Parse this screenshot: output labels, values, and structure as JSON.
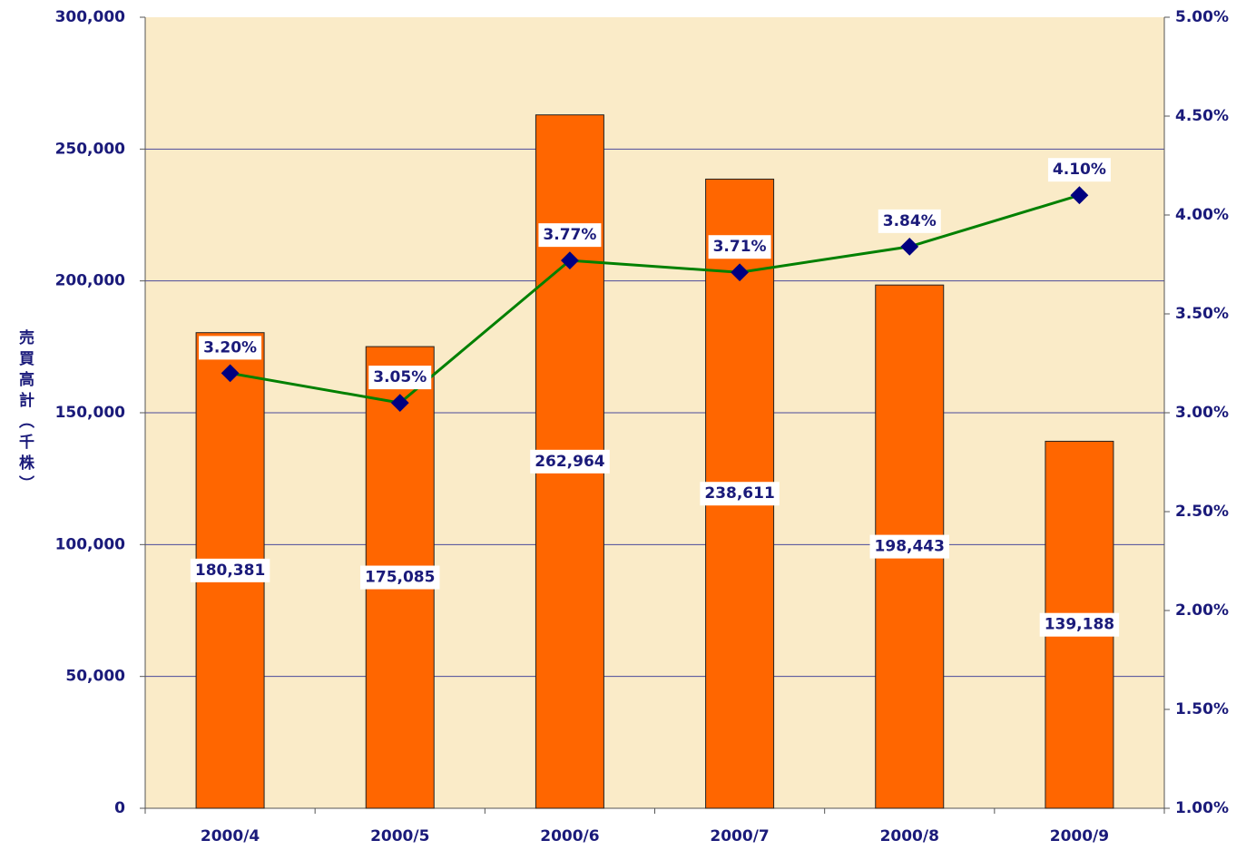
{
  "chart_data": {
    "type": "bar",
    "ylabel": "売買高計（千株）",
    "categories": [
      "2000/4",
      "2000/5",
      "2000/6",
      "2000/7",
      "2000/8",
      "2000/9"
    ],
    "series": [
      {
        "color": "#ff6600",
        "values": [
          180381,
          175085,
          262964,
          238611,
          198443,
          139188
        ],
        "value_labels": [
          "180,381",
          "175,085",
          "262,964",
          "238,611",
          "198,443",
          "139,188"
        ]
      },
      {
        "type": "line",
        "axis": "y2",
        "color": "#008000",
        "marker_color": "#000080",
        "values": [
          3.2,
          3.05,
          3.77,
          3.71,
          3.84,
          4.1
        ],
        "value_labels": [
          "3.20%",
          "3.05%",
          "3.77%",
          "3.71%",
          "3.84%",
          "4.10%"
        ]
      }
    ],
    "ylim": [
      0,
      300000
    ],
    "yticks": [
      0,
      {
        "value": 50000,
        "label": "50,000"
      },
      {
        "value": 100000,
        "label": "100,000"
      },
      {
        "value": 150000,
        "label": "150,000"
      },
      {
        "value": 200000,
        "label": "200,000"
      },
      {
        "value": 250000,
        "label": "250,000"
      },
      {
        "value": 300000,
        "label": "300,000"
      }
    ],
    "y2lim": [
      1,
      5
    ],
    "y2ticks": [
      {
        "value": 1,
        "label": "1.00%"
      },
      {
        "value": 1.5,
        "label": "1.50%"
      },
      {
        "value": 2,
        "label": "2.00%"
      },
      {
        "value": 2.5,
        "label": "2.50%"
      },
      {
        "value": 3,
        "label": "3.00%"
      },
      {
        "value": 3.5,
        "label": "3.50%"
      },
      {
        "value": 4,
        "label": "4.00%"
      },
      {
        "value": 4.5,
        "label": "4.50%"
      },
      {
        "value": 5,
        "label": "5.00%"
      }
    ],
    "grid": true
  }
}
